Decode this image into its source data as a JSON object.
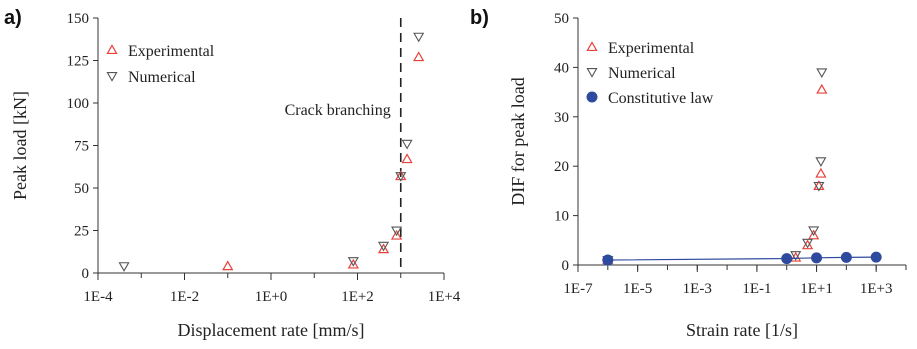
{
  "colors": {
    "experimental": "#e8413a",
    "numerical": "#555555",
    "constitutive": "#2e4a9e",
    "axis": "#333333"
  },
  "chart_data": [
    {
      "type": "scatter",
      "panel_label": "a)",
      "xlabel": "Displacement rate [mm/s]",
      "ylabel": "Peak load [kN]",
      "xscale": "log",
      "xlim": [
        0.0001,
        10000
      ],
      "ylim": [
        0,
        150
      ],
      "xticks": [
        {
          "value": 0.0001,
          "label": "1E-4"
        },
        {
          "value": 0.01,
          "label": "1E-2"
        },
        {
          "value": 1,
          "label": "1E+0"
        },
        {
          "value": 100,
          "label": "1E+2"
        },
        {
          "value": 10000,
          "label": "1E+4"
        }
      ],
      "yticks": [
        0,
        25,
        50,
        75,
        100,
        125,
        150
      ],
      "legend_position": "top-left",
      "annotation": {
        "text": "Crack branching",
        "line_x": 1000
      },
      "series": [
        {
          "name": "Experimental",
          "marker": "triangle-up",
          "x": [
            0.1,
            80,
            400,
            800,
            1000,
            1400,
            2600
          ],
          "y": [
            4,
            5,
            14,
            22,
            57,
            67,
            127
          ]
        },
        {
          "name": "Numerical",
          "marker": "triangle-down",
          "x": [
            0.0004,
            80,
            400,
            800,
            1000,
            1400,
            2600
          ],
          "y": [
            4,
            7,
            16,
            25,
            57,
            76,
            139
          ]
        }
      ]
    },
    {
      "type": "scatter",
      "panel_label": "b)",
      "xlabel": "Strain rate [1/s]",
      "ylabel": "DIF for peak load",
      "xscale": "log",
      "xlim": [
        1e-07,
        10000
      ],
      "ylim": [
        0,
        50
      ],
      "xticks": [
        {
          "value": 1e-07,
          "label": "1E-7"
        },
        {
          "value": 1e-05,
          "label": "1E-5"
        },
        {
          "value": 0.001,
          "label": "1E-3"
        },
        {
          "value": 0.1,
          "label": "1E-1"
        },
        {
          "value": 10,
          "label": "1E+1"
        },
        {
          "value": 1000,
          "label": "1E+3"
        }
      ],
      "yticks": [
        0,
        10,
        20,
        30,
        40,
        50
      ],
      "legend_position": "top-left",
      "series": [
        {
          "name": "Experimental",
          "marker": "triangle-up",
          "x": [
            1e-06,
            2,
            5,
            8,
            12,
            14,
            15
          ],
          "y": [
            1,
            1.5,
            4,
            6,
            16,
            18.5,
            35.5
          ]
        },
        {
          "name": "Numerical",
          "marker": "triangle-down",
          "x": [
            1e-06,
            2,
            5,
            8,
            12,
            14,
            15
          ],
          "y": [
            1,
            2,
            4.5,
            7,
            16,
            21,
            39
          ]
        },
        {
          "name": "Constitutive law",
          "marker": "circle",
          "line": true,
          "x": [
            1e-06,
            1,
            10,
            100,
            1000
          ],
          "y": [
            1,
            1.3,
            1.45,
            1.55,
            1.6
          ]
        }
      ]
    }
  ]
}
